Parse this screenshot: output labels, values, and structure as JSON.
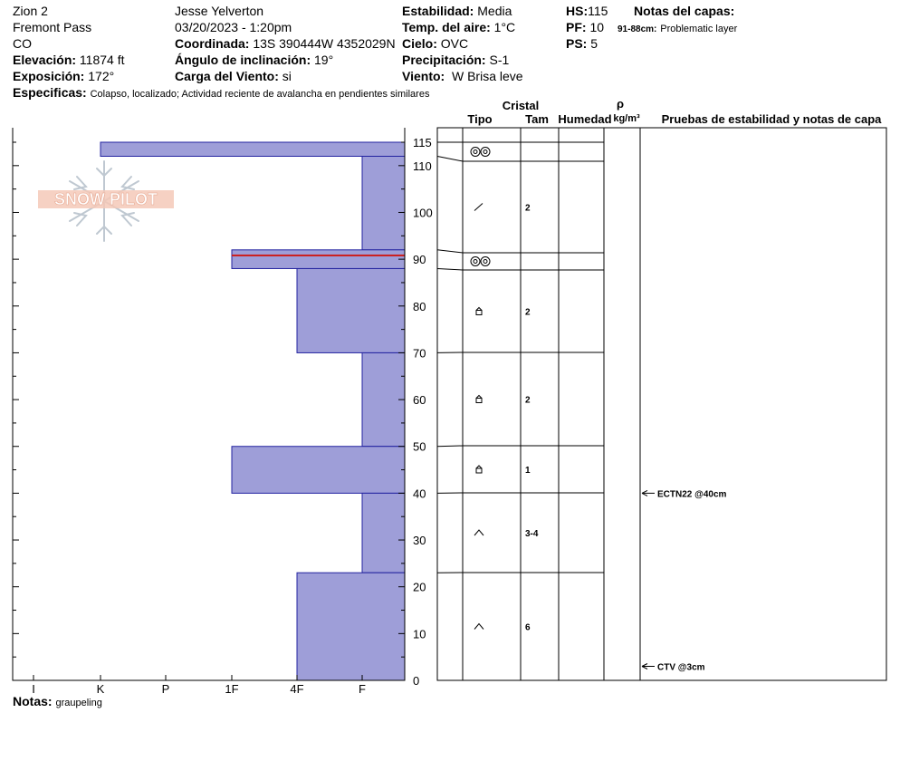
{
  "header": {
    "site": "Zion 2",
    "area": "Fremont Pass",
    "state": "CO",
    "elevation_label": "Elevación:",
    "elevation": "11874 ft",
    "aspect_label": "Exposición:",
    "aspect": "172°",
    "observer": "Jesse Yelverton",
    "datetime": "03/20/2023 - 1:20pm",
    "coord_label": "Coordinada:",
    "coord": "13S 390444W 4352029N",
    "incline_label": "Ángulo de inclinación:",
    "incline": "19°",
    "wind_load_label": "Carga del Viento:",
    "wind_load": "si",
    "stability_label": "Estabilidad:",
    "stability": "Media",
    "air_temp_label": "Temp. del aire:",
    "air_temp": "1°C",
    "sky_label": "Cielo:",
    "sky": "OVC",
    "precip_label": "Precipitación:",
    "precip": "S-1",
    "wind_label": "Viento:",
    "wind": "W Brisa leve",
    "hs_label": "HS:",
    "hs": "115",
    "pf_label": "PF:",
    "pf": "10",
    "ps_label": "PS:",
    "ps": "5",
    "layer_notes_label": "Notas del capas:",
    "layer_note_depth": "91-88cm:",
    "layer_note_text": "Problematic layer",
    "specifics_label": "Especificas:",
    "specifics": "Colapso, localizado;  Actividad reciente de avalancha en pendientes similares"
  },
  "columns": {
    "cristal": "Cristal",
    "tipo": "Tipo",
    "tam": "Tam",
    "humedad": "Humedad",
    "rho": "ρ",
    "density_unit": "kg/m³",
    "tests": "Pruebas de estabilidad y notas de capa"
  },
  "logo_text": "SNOW PILOT",
  "notes_label": "Notas:",
  "notes": "graupeling",
  "colors": {
    "bar_fill": "#9e9ed8",
    "bar_stroke": "#2323a0",
    "weak_layer": "#cc1f1f",
    "logo": "#f3c6b4"
  },
  "chart_data": {
    "type": "bar",
    "orientation": "horizontal",
    "y_unit": "cm",
    "ylim": [
      0,
      115
    ],
    "y_ticks": [
      0,
      10,
      20,
      30,
      40,
      50,
      60,
      70,
      80,
      90,
      100,
      110,
      115
    ],
    "hardness_ticks": [
      "I",
      "K",
      "P",
      "1F",
      "4F",
      "F"
    ],
    "layers": [
      {
        "top": 115,
        "bottom": 112,
        "hardness": "K",
        "grain_icon": "precipitation-particle-icon",
        "size": ""
      },
      {
        "top": 112,
        "bottom": 92,
        "hardness": "F",
        "grain_icon": "decomposed-particle-icon",
        "size": "2"
      },
      {
        "top": 92,
        "bottom": 88,
        "hardness": "1F",
        "grain_icon": "precipitation-particle-icon",
        "size": ""
      },
      {
        "top": 88,
        "bottom": 70,
        "hardness": "4F",
        "grain_icon": "faceted-crystal-icon",
        "size": "2"
      },
      {
        "top": 70,
        "bottom": 50,
        "hardness": "F",
        "grain_icon": "faceted-crystal-icon",
        "size": "2"
      },
      {
        "top": 50,
        "bottom": 40,
        "hardness": "1F",
        "grain_icon": "faceted-crystal-icon",
        "size": "1"
      },
      {
        "top": 40,
        "bottom": 23,
        "hardness": "F",
        "grain_icon": "depth-hoar-icon",
        "size": "3-4"
      },
      {
        "top": 23,
        "bottom": 0,
        "hardness": "4F",
        "grain_icon": "depth-hoar-icon",
        "size": "6"
      }
    ],
    "weak_layer": {
      "top": 91,
      "bottom": 88
    },
    "tests": [
      {
        "depth": 40,
        "label": "ECTN22 @40cm"
      },
      {
        "depth": 3,
        "label": "CTV @3cm"
      }
    ]
  }
}
